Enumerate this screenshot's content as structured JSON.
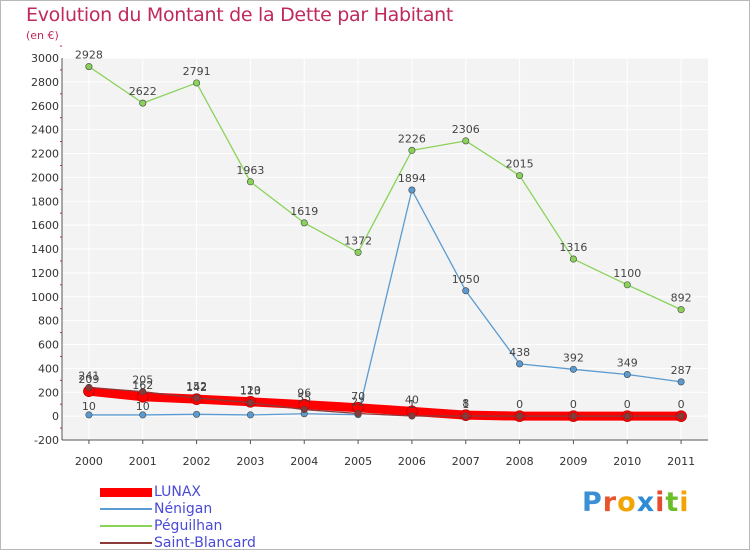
{
  "title": "Evolution du Montant de la Dette par Habitant",
  "unit_label": "(en €)",
  "logo": {
    "letters": [
      "P",
      "r",
      "o",
      "x",
      "i",
      "t",
      "i"
    ],
    "colors": [
      "#3a8fd6",
      "#e8552b",
      "#f2a400",
      "#2c8cd8",
      "#e84a2f",
      "#6cbd2a",
      "#f2a400"
    ]
  },
  "chart_data": {
    "type": "line",
    "x": [
      "2000",
      "2001",
      "2002",
      "2003",
      "2004",
      "2005",
      "2006",
      "2007",
      "2008",
      "2009",
      "2010",
      "2011"
    ],
    "ylim": [
      -200,
      3000
    ],
    "yticks": [
      "-200",
      "0",
      "200",
      "400",
      "600",
      "800",
      "1000",
      "1200",
      "1400",
      "1600",
      "1800",
      "2000",
      "2200",
      "2400",
      "2600",
      "2800",
      "3000"
    ],
    "grid": true,
    "legend_position": "bottom-left",
    "series": [
      {
        "name": "LUNAX",
        "color": "#ff0000",
        "line_width": 9,
        "values": [
          209,
          162,
          142,
          120,
          96,
          70,
          40,
          8,
          0,
          0,
          0,
          0
        ],
        "labels": [
          "209",
          "162",
          "142",
          "120",
          "96",
          "70",
          "40",
          "8",
          "0",
          "0",
          "0",
          "0"
        ]
      },
      {
        "name": "Nénigan",
        "color": "#5b9bd1",
        "line_width": 1.3,
        "values": [
          10,
          10,
          15,
          10,
          20,
          12,
          1894,
          1050,
          438,
          392,
          349,
          287
        ],
        "labels": [
          "10",
          "10",
          "",
          "",
          "",
          "",
          "1894",
          "1050",
          "438",
          "392",
          "349",
          "287"
        ]
      },
      {
        "name": "Péguilhan",
        "color": "#8ad35a",
        "line_width": 1.3,
        "values": [
          2928,
          2622,
          2791,
          1963,
          1619,
          1372,
          2226,
          2306,
          2015,
          1316,
          1100,
          892
        ],
        "labels": [
          "2928",
          "2622",
          "2791",
          "1963",
          "1619",
          "1372",
          "2226",
          "2306",
          "2015",
          "1316",
          "1100",
          "892"
        ]
      },
      {
        "name": "Saint-Blancard",
        "color": "#8b3a3a",
        "line_width": 1.3,
        "values": [
          241,
          205,
          152,
          113,
          55,
          22,
          1,
          1,
          0,
          0,
          0,
          0
        ],
        "labels": [
          "241",
          "205",
          "152",
          "113",
          "55",
          "22",
          "1",
          "1",
          "",
          "",
          "",
          ""
        ]
      }
    ]
  }
}
